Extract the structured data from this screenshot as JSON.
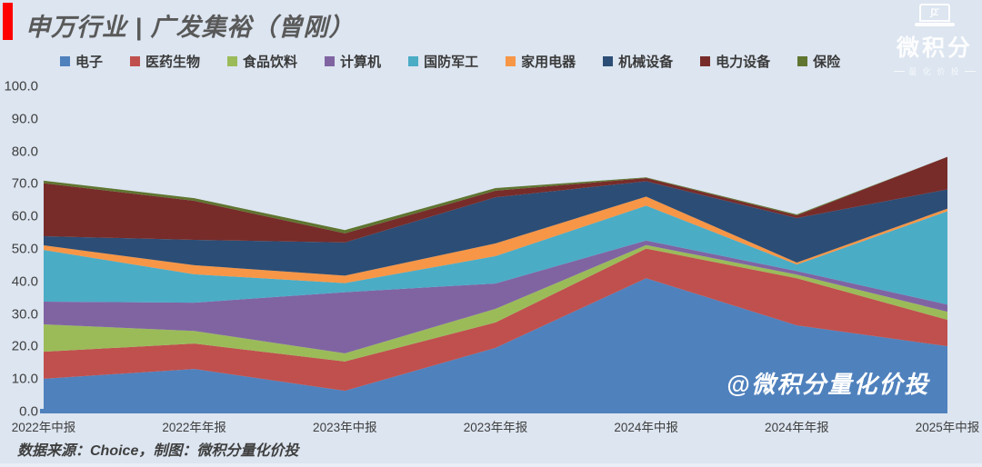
{
  "page": {
    "background": "#dce5f0"
  },
  "header": {
    "title": "申万行业 | 广发集裕（曾刚）",
    "accent_color": "#fe0000"
  },
  "brand": {
    "name": "微积分",
    "tagline": "量 化 价 投",
    "icon": "integral-sigma-laptop-icon",
    "icon_glyph": "∫Σ"
  },
  "watermark": {
    "text": "@微积分量化价投"
  },
  "footer": {
    "text": "数据来源：Choice，制图：微积分量化价投"
  },
  "axis": {
    "line_color": "#4f81bd",
    "label_color": "#3f3f3f"
  },
  "chart_data": {
    "type": "area",
    "stacked": true,
    "title": "申万行业 | 广发集裕（曾刚）",
    "xlabel": "",
    "ylabel": "",
    "ylim": [
      0,
      100
    ],
    "grid": false,
    "legend_position": "top",
    "ytick_values": [
      0,
      10,
      20,
      30,
      40,
      50,
      60,
      70,
      80,
      90,
      100
    ],
    "ytick_labels": [
      "0.0",
      "10.0",
      "20.0",
      "30.0",
      "40.0",
      "50.0",
      "60.0",
      "70.0",
      "80.0",
      "90.0",
      "100.0"
    ],
    "categories": [
      "2022年中报",
      "2022年年报",
      "2023年中报",
      "2023年年报",
      "2024年中报",
      "2024年年报",
      "2025年中报"
    ],
    "series": [
      {
        "name": "电子",
        "color": "#4f81bd",
        "values": [
          10.1,
          13.1,
          6.4,
          19.6,
          41.0,
          26.5,
          20.1
        ]
      },
      {
        "name": "医药生物",
        "color": "#c0504d",
        "values": [
          8.3,
          7.8,
          9.0,
          7.8,
          9.1,
          14.5,
          8.1
        ]
      },
      {
        "name": "食品饮料",
        "color": "#9bbb59",
        "values": [
          8.4,
          3.9,
          2.5,
          4.2,
          1.1,
          1.1,
          2.5
        ]
      },
      {
        "name": "计算机",
        "color": "#8064a2",
        "values": [
          7.0,
          8.7,
          18.8,
          7.8,
          1.4,
          1.1,
          2.2
        ]
      },
      {
        "name": "国防军工",
        "color": "#4bacc6",
        "values": [
          15.9,
          8.7,
          2.8,
          8.4,
          10.7,
          2.0,
          28.7
        ]
      },
      {
        "name": "家用电器",
        "color": "#f79646",
        "values": [
          1.4,
          2.8,
          2.3,
          3.9,
          2.8,
          0.6,
          0.8
        ]
      },
      {
        "name": "机械设备",
        "color": "#2c4d75",
        "values": [
          2.8,
          7.8,
          10.2,
          14.2,
          4.7,
          13.7,
          5.9
        ]
      },
      {
        "name": "电力设备",
        "color": "#772c2a",
        "values": [
          16.3,
          12.0,
          2.8,
          2.0,
          1.0,
          0.8,
          10.0
        ]
      },
      {
        "name": "保险",
        "color": "#5f7530",
        "values": [
          0.8,
          0.8,
          1.0,
          0.8,
          0.2,
          0.3,
          0.0
        ]
      }
    ]
  }
}
